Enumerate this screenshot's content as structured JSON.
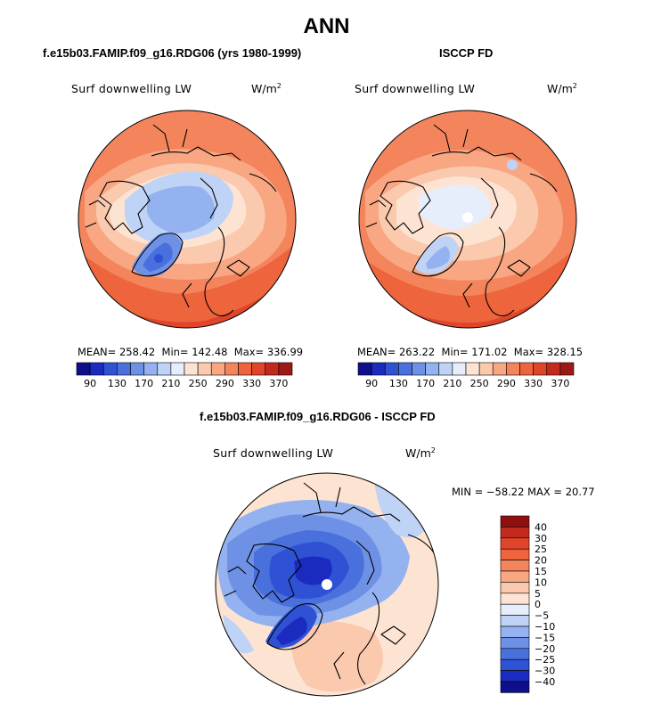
{
  "figure": {
    "title": "ANN"
  },
  "colors": {
    "levels_full": [
      "#0d0f8c",
      "#1b2bbf",
      "#2f52d4",
      "#4a70de",
      "#6e91e6",
      "#93b2ef",
      "#bed3f6",
      "#e6eefb",
      "#fde4d2",
      "#fac9ae",
      "#f8a782",
      "#f3845c",
      "#ee643c",
      "#e0442a",
      "#c22a1d",
      "#9c1a14"
    ],
    "levels_diff": [
      "#0d0f8c",
      "#1b2bbf",
      "#2f52d4",
      "#4a70de",
      "#6e91e6",
      "#93b2ef",
      "#bed3f6",
      "#e6eefb",
      "#fde4d2",
      "#fac9ae",
      "#f8a782",
      "#f3845c",
      "#ee643c",
      "#e0442a",
      "#c22a1d",
      "#8e1010"
    ]
  },
  "chart_data": [
    {
      "type": "heatmap",
      "projection": "polar stereographic",
      "title": "f.e15b03.FAMIP.f09_g16.RDG06 (yrs 1980-1999)",
      "label": "Surf downwelling LW",
      "units": "W/m",
      "units_exp": "2",
      "stats": {
        "mean_label": "MEAN=",
        "mean": "258.42",
        "min_label": "Min=",
        "min": "142.48",
        "max_label": "Max=",
        "max": "336.99"
      },
      "colorbar_ticks": [
        "90",
        "130",
        "170",
        "210",
        "250",
        "290",
        "330",
        "370"
      ]
    },
    {
      "type": "heatmap",
      "projection": "polar stereographic",
      "title": "ISCCP FD",
      "label": "Surf downwelling LW",
      "units": "W/m",
      "units_exp": "2",
      "stats": {
        "mean_label": "MEAN=",
        "mean": "263.22",
        "min_label": "Min=",
        "min": "171.02",
        "max_label": "Max=",
        "max": "328.15"
      },
      "colorbar_ticks": [
        "90",
        "130",
        "170",
        "210",
        "250",
        "290",
        "330",
        "370"
      ]
    },
    {
      "type": "heatmap",
      "projection": "polar stereographic",
      "title": "f.e15b03.FAMIP.f09_g16.RDG06 - ISCCP FD",
      "label": "Surf downwelling LW",
      "units": "W/m",
      "units_exp": "2",
      "minmax_text": "MIN = −58.22 MAX =  20.77",
      "colorbar_ticks": [
        "40",
        "30",
        "25",
        "20",
        "15",
        "10",
        "5",
        "0",
        "−5",
        "−10",
        "−15",
        "−20",
        "−25",
        "−30",
        "−40"
      ]
    }
  ]
}
